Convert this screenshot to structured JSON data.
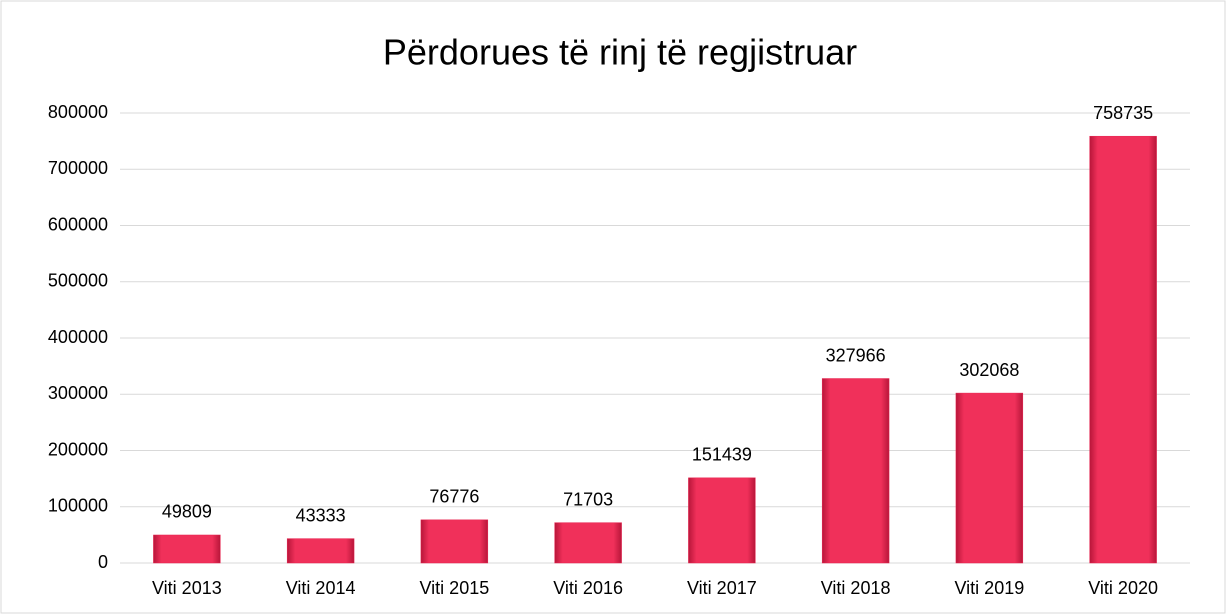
{
  "chart_data": {
    "type": "bar",
    "title": "Përdorues të rinj të regjistruar",
    "categories": [
      "Viti 2013",
      "Viti 2014",
      "Viti 2015",
      "Viti 2016",
      "Viti 2017",
      "Viti 2018",
      "Viti 2019",
      "Viti 2020"
    ],
    "values": [
      49809,
      43333,
      76776,
      71703,
      151439,
      327966,
      302068,
      758735
    ],
    "color": "#e8234f",
    "ylim": [
      0,
      800000
    ],
    "yticks": [
      0,
      100000,
      200000,
      300000,
      400000,
      500000,
      600000,
      700000,
      800000
    ],
    "grid": true
  }
}
